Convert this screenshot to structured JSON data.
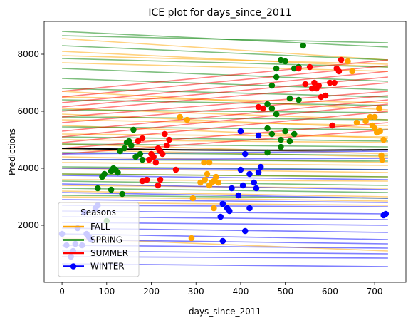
{
  "chart_data": {
    "type": "line",
    "title": "ICE plot for days_since_2011",
    "xlabel": "days_since_2011",
    "ylabel": "Predictions",
    "xlim": [
      -40,
      770
    ],
    "ylim": [
      0,
      9150
    ],
    "xticks": [
      0,
      100,
      200,
      300,
      400,
      500,
      600,
      700
    ],
    "yticks": [
      2000,
      4000,
      6000,
      8000
    ],
    "grid": false,
    "legend": {
      "title": "Seasons",
      "placement": "lower-left",
      "entries": [
        "FALL",
        "SPRING",
        "SUMMER",
        "WINTER"
      ]
    },
    "colors": {
      "FALL": "#ffa500",
      "SPRING": "#008000",
      "SUMMER": "#ff0000",
      "WINTER": "#0000ff",
      "average": "#000000"
    },
    "average_line": {
      "x": [
        0,
        730
      ],
      "start": 4700,
      "end": 4650,
      "curve": 80
    },
    "series": [
      {
        "name": "FALL",
        "ice_lines": [
          [
            8550,
            7800
          ],
          [
            8100,
            7550
          ],
          [
            7950,
            7650
          ],
          [
            7700,
            7400
          ],
          [
            6700,
            6050
          ],
          [
            6500,
            6300
          ],
          [
            6100,
            5700
          ],
          [
            5900,
            5400
          ],
          [
            5700,
            5500
          ],
          [
            5500,
            5050
          ],
          [
            5200,
            5100
          ],
          [
            5000,
            4900
          ],
          [
            4850,
            4500
          ],
          [
            4650,
            4400
          ],
          [
            4400,
            4200
          ],
          [
            4200,
            4100
          ],
          [
            4000,
            3850
          ],
          [
            3800,
            3700
          ],
          [
            3600,
            3550
          ],
          [
            3400,
            3300
          ],
          [
            3200,
            3000
          ],
          [
            3000,
            2850
          ],
          [
            2800,
            2700
          ],
          [
            1550,
            1100
          ]
        ],
        "points": [
          [
            264,
            5800
          ],
          [
            280,
            5700
          ],
          [
            318,
            4200
          ],
          [
            325,
            3800
          ],
          [
            330,
            4200
          ],
          [
            310,
            3500
          ],
          [
            320,
            3600
          ],
          [
            335,
            3500
          ],
          [
            340,
            3550
          ],
          [
            345,
            3700
          ],
          [
            350,
            3500
          ],
          [
            330,
            3400
          ],
          [
            293,
            2950
          ],
          [
            340,
            2600
          ],
          [
            290,
            1550
          ],
          [
            640,
            7750
          ],
          [
            650,
            7400
          ],
          [
            660,
            5600
          ],
          [
            680,
            5650
          ],
          [
            690,
            5800
          ],
          [
            695,
            5500
          ],
          [
            700,
            5400
          ],
          [
            705,
            5250
          ],
          [
            710,
            6100
          ],
          [
            712,
            5300
          ],
          [
            715,
            4450
          ],
          [
            717,
            4300
          ],
          [
            720,
            5000
          ],
          [
            700,
            5800
          ]
        ]
      },
      {
        "name": "SPRING",
        "ice_lines": [
          [
            8800,
            8250
          ],
          [
            8650,
            8400
          ],
          [
            8300,
            7800
          ],
          [
            7850,
            7550
          ],
          [
            7500,
            7050
          ],
          [
            7150,
            6750
          ],
          [
            6800,
            6500
          ],
          [
            6400,
            6200
          ],
          [
            6050,
            5950
          ],
          [
            5800,
            5700
          ],
          [
            5450,
            5350
          ],
          [
            5100,
            4950
          ],
          [
            4850,
            4750
          ],
          [
            4550,
            4450
          ],
          [
            4300,
            4250
          ],
          [
            4050,
            3950
          ],
          [
            3800,
            3700
          ],
          [
            3550,
            3400
          ],
          [
            3300,
            3150
          ],
          [
            3050,
            2950
          ]
        ],
        "points": [
          [
            80,
            3300
          ],
          [
            90,
            3700
          ],
          [
            95,
            3800
          ],
          [
            110,
            3900
          ],
          [
            115,
            4000
          ],
          [
            120,
            3950
          ],
          [
            125,
            3850
          ],
          [
            130,
            4600
          ],
          [
            140,
            4700
          ],
          [
            150,
            4950
          ],
          [
            155,
            4800
          ],
          [
            160,
            5350
          ],
          [
            165,
            4400
          ],
          [
            175,
            4500
          ],
          [
            180,
            4300
          ],
          [
            145,
            4900
          ],
          [
            135,
            3100
          ],
          [
            110,
            3250
          ],
          [
            100,
            2150
          ],
          [
            480,
            7500
          ],
          [
            490,
            7800
          ],
          [
            500,
            7750
          ],
          [
            520,
            7500
          ],
          [
            530,
            7550
          ],
          [
            540,
            8300
          ],
          [
            470,
            6900
          ],
          [
            480,
            7200
          ],
          [
            510,
            6450
          ],
          [
            460,
            6250
          ],
          [
            470,
            6100
          ],
          [
            480,
            5900
          ],
          [
            460,
            5400
          ],
          [
            470,
            5200
          ],
          [
            490,
            5000
          ],
          [
            500,
            5300
          ],
          [
            510,
            4950
          ],
          [
            520,
            5200
          ],
          [
            490,
            4750
          ],
          [
            460,
            4550
          ],
          [
            530,
            6400
          ]
        ]
      },
      {
        "name": "SUMMER",
        "ice_lines": [
          [
            6700,
            7800
          ],
          [
            6500,
            7600
          ],
          [
            6300,
            7400
          ],
          [
            6150,
            7200
          ],
          [
            6000,
            7000
          ],
          [
            5800,
            6700
          ],
          [
            5600,
            6550
          ],
          [
            5300,
            6400
          ],
          [
            5100,
            6250
          ],
          [
            4900,
            6000
          ],
          [
            4700,
            5600
          ],
          [
            4500,
            5350
          ]
        ],
        "points": [
          [
            170,
            4950
          ],
          [
            180,
            5050
          ],
          [
            195,
            4300
          ],
          [
            200,
            4500
          ],
          [
            205,
            4400
          ],
          [
            210,
            4200
          ],
          [
            215,
            4700
          ],
          [
            220,
            4600
          ],
          [
            225,
            4500
          ],
          [
            230,
            5200
          ],
          [
            235,
            4800
          ],
          [
            240,
            5000
          ],
          [
            255,
            3950
          ],
          [
            180,
            3550
          ],
          [
            190,
            3600
          ],
          [
            215,
            3400
          ],
          [
            220,
            3600
          ],
          [
            530,
            7500
          ],
          [
            555,
            7550
          ],
          [
            565,
            7000
          ],
          [
            570,
            6800
          ],
          [
            575,
            6900
          ],
          [
            580,
            6500
          ],
          [
            590,
            6550
          ],
          [
            600,
            7000
          ],
          [
            610,
            7000
          ],
          [
            615,
            7500
          ],
          [
            620,
            7400
          ],
          [
            625,
            7800
          ],
          [
            605,
            5500
          ],
          [
            545,
            6950
          ],
          [
            560,
            6800
          ],
          [
            440,
            6150
          ],
          [
            450,
            6100
          ]
        ]
      },
      {
        "name": "WINTER",
        "ice_lines": [
          [
            4500,
            4600
          ],
          [
            4300,
            4350
          ],
          [
            4000,
            3950
          ],
          [
            3750,
            3600
          ],
          [
            3450,
            3250
          ],
          [
            3150,
            2950
          ],
          [
            2900,
            2800
          ],
          [
            2700,
            2650
          ],
          [
            2500,
            2400
          ],
          [
            2300,
            2200
          ],
          [
            2100,
            2000
          ],
          [
            1900,
            1750
          ],
          [
            1700,
            1500
          ],
          [
            1500,
            1350
          ],
          [
            1300,
            1200
          ],
          [
            1100,
            1000
          ],
          [
            900,
            850
          ],
          [
            650,
            550
          ]
        ],
        "points": [
          [
            0,
            1700
          ],
          [
            10,
            1300
          ],
          [
            20,
            900
          ],
          [
            25,
            1100
          ],
          [
            30,
            1350
          ],
          [
            35,
            1900
          ],
          [
            45,
            1300
          ],
          [
            50,
            2450
          ],
          [
            55,
            1700
          ],
          [
            60,
            1600
          ],
          [
            65,
            1500
          ],
          [
            80,
            2700
          ],
          [
            75,
            2600
          ],
          [
            355,
            2300
          ],
          [
            360,
            2750
          ],
          [
            370,
            2600
          ],
          [
            375,
            2500
          ],
          [
            380,
            3300
          ],
          [
            395,
            3050
          ],
          [
            400,
            3950
          ],
          [
            405,
            3400
          ],
          [
            410,
            4500
          ],
          [
            420,
            3800
          ],
          [
            430,
            3500
          ],
          [
            435,
            3300
          ],
          [
            440,
            3850
          ],
          [
            445,
            4050
          ],
          [
            420,
            2600
          ],
          [
            400,
            5300
          ],
          [
            440,
            5150
          ],
          [
            360,
            1450
          ],
          [
            410,
            1800
          ],
          [
            720,
            2350
          ],
          [
            725,
            2400
          ]
        ]
      }
    ]
  }
}
